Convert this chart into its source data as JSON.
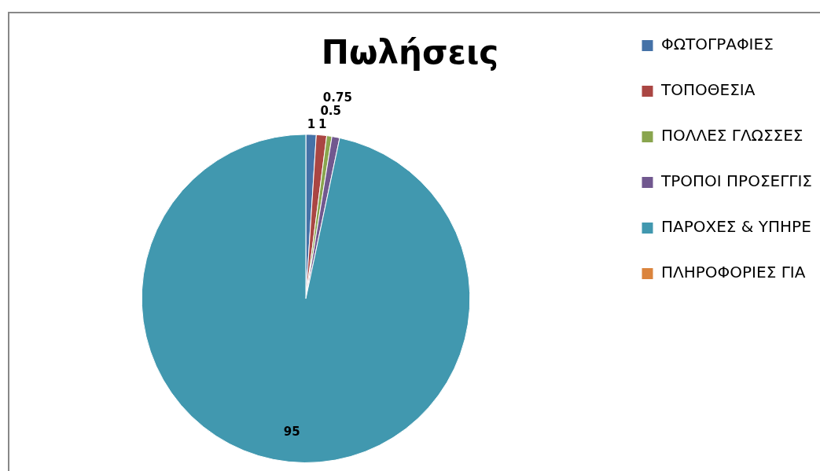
{
  "chart_data": {
    "type": "pie",
    "title": "Πωλήσεις",
    "categories": [
      "ΦΩΤΟΓΡΑΦΙΕΣ",
      "ΤΟΠΟΘΕΣΙΑ",
      "ΠΟΛΛΕΣ ΓΛΩΣΣΕΣ",
      "ΤΡΟΠΟΙ ΠΡΟΣΕΓΓΙΣ",
      "ΠΑΡΟΧΕΣ & ΥΠΗΡΕ",
      "ΠΛΗΡΟΦΟΡΙΕΣ ΓΙΑ"
    ],
    "values": [
      1,
      1,
      0.5,
      0.75,
      95,
      0
    ],
    "colors": [
      "#4572a7",
      "#aa4643",
      "#89a54e",
      "#71588f",
      "#4198af",
      "#db843d"
    ],
    "value_labels": [
      "1",
      "1",
      "0.5",
      "0.75",
      "95",
      null
    ],
    "legend": "right"
  }
}
